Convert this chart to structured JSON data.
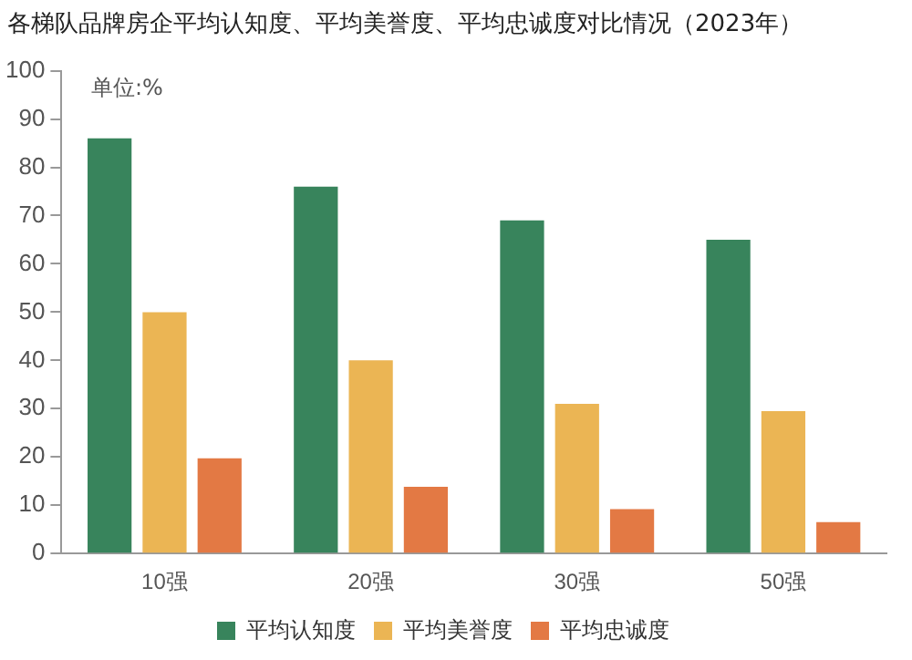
{
  "chart_data": {
    "type": "bar",
    "title": "各梯队品牌房企平均认知度、平均美誉度、平均忠诚度对比情况（2023年）",
    "annotations": [
      "单位:%"
    ],
    "categories": [
      "10强",
      "20强",
      "30强",
      "50强"
    ],
    "series": [
      {
        "name": "平均认知度",
        "color": "#38845c",
        "values": [
          86,
          76,
          69,
          65
        ]
      },
      {
        "name": "平均美誉度",
        "color": "#ebb554",
        "values": [
          50,
          40,
          31,
          29.5
        ]
      },
      {
        "name": "平均忠诚度",
        "color": "#e37944",
        "values": [
          19.7,
          13.8,
          9.2,
          6.5
        ]
      }
    ],
    "ylim": [
      0,
      100
    ],
    "yticks": [
      0,
      10,
      20,
      30,
      40,
      50,
      60,
      70,
      80,
      90,
      100
    ],
    "grid": false,
    "legend": "bottom"
  }
}
